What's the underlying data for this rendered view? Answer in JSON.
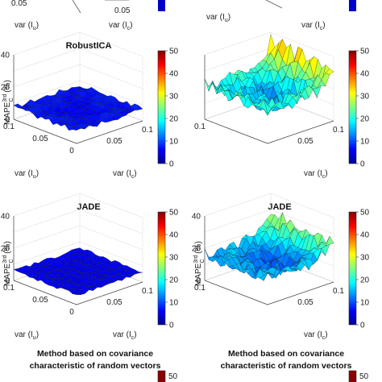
{
  "figure": {
    "top_tick_labels": [
      "0.05",
      "0.05"
    ],
    "top_axis_labels": [
      "var (I",
      "var (I"
    ],
    "top_axis_subs": [
      "u",
      "c"
    ]
  },
  "colors": {
    "surface_low": "#1e3cff",
    "colorbar_bottom": "#00008f",
    "colorbar_top": "#800000"
  },
  "chart_data": [
    {
      "type": "surface",
      "title": "RobustICA",
      "xlabel": "var (I",
      "xlabel_sub": "u",
      "ylabel": "var (I",
      "ylabel_sub": "c",
      "zlabel": "MAPE",
      "zlabel_sup": "3rd",
      "zlabel_sub": "C",
      "zlabel_unit": "(%)",
      "zticks": [
        "40",
        "20",
        "0"
      ],
      "xticks": [
        "0.1",
        "0.05",
        "0"
      ],
      "yticks": [
        "0.05",
        "0.1"
      ],
      "zlim": [
        0,
        40
      ],
      "colorbar_ticks": [
        "50",
        "40",
        "30",
        "20",
        "10",
        "0"
      ],
      "colorbar_range": [
        0,
        50
      ],
      "surface": {
        "base": 6,
        "edge_rise": 1.5,
        "noise": 1.5,
        "hot_corner": 0
      }
    },
    {
      "type": "surface",
      "title": "",
      "xlabel": "",
      "xlabel_sub": "",
      "ylabel": "var (I",
      "ylabel_sub": "c",
      "zlabel": "",
      "zlabel_sup": "",
      "zlabel_sub": "",
      "zlabel_unit": "",
      "zticks": [],
      "xticks": [
        "0.1"
      ],
      "yticks": [
        "0.05",
        "0.1"
      ],
      "zlim": [
        0,
        40
      ],
      "colorbar_ticks": [
        "50",
        "40",
        "30",
        "20",
        "10",
        "0"
      ],
      "colorbar_range": [
        0,
        50
      ],
      "surface": {
        "base": 13,
        "edge_rise": 8,
        "noise": 5,
        "hot_corner": 14
      }
    },
    {
      "type": "surface",
      "title": "JADE",
      "xlabel": "var (I",
      "xlabel_sub": "u",
      "ylabel": "var (I",
      "ylabel_sub": "c",
      "zlabel": "MAPE",
      "zlabel_sup": "3rd",
      "zlabel_sub": "C",
      "zlabel_unit": "(%)",
      "zticks": [
        "40",
        "20",
        "0"
      ],
      "xticks": [
        "0.1",
        "0.05",
        "0"
      ],
      "yticks": [
        "0.05",
        "0.1"
      ],
      "zlim": [
        0,
        40
      ],
      "colorbar_ticks": [
        "50",
        "40",
        "30",
        "20",
        "10",
        "0"
      ],
      "colorbar_range": [
        0,
        50
      ],
      "surface": {
        "base": 5,
        "edge_rise": 1,
        "noise": 1,
        "hot_corner": 0
      }
    },
    {
      "type": "surface",
      "title": "JADE",
      "xlabel": "",
      "xlabel_sub": "",
      "ylabel": "var (I",
      "ylabel_sub": "c",
      "zlabel": "MAPE",
      "zlabel_sup": "3rd",
      "zlabel_sub": "C",
      "zlabel_unit": "(%)",
      "zticks": [
        "40",
        "20",
        "0"
      ],
      "xticks": [
        "0.1"
      ],
      "yticks": [
        "0.05",
        "0.1"
      ],
      "zlim": [
        0,
        40
      ],
      "colorbar_ticks": [
        "50",
        "40",
        "30",
        "20",
        "10",
        "0"
      ],
      "colorbar_range": [
        0,
        50
      ],
      "surface": {
        "base": 10,
        "edge_rise": 6,
        "noise": 4,
        "hot_corner": 12
      }
    },
    {
      "type": "surface",
      "title": "Method based on covariance characteristic of random vectors",
      "title_lines": [
        "Method based on covariance",
        "characteristic of random vectors"
      ],
      "colorbar_ticks": [
        "50"
      ]
    },
    {
      "type": "surface",
      "title": "Method based on covariance characteristic of random vectors",
      "title_lines": [
        "Method based on covariance",
        "characteristic of random vectors"
      ],
      "colorbar_ticks": [
        "50"
      ]
    }
  ]
}
